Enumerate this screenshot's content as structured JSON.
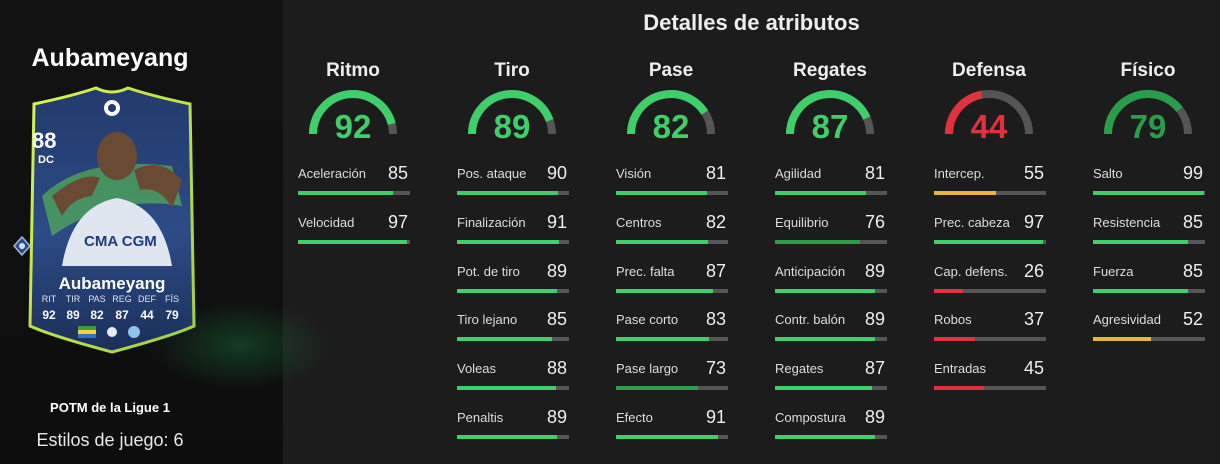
{
  "colors": {
    "green": "#3fcf6a",
    "dark_green": "#2a9c4a",
    "yellow": "#e8b63a",
    "red": "#e0323c",
    "track": "#555555"
  },
  "player": {
    "name": "Aubameyang",
    "card": {
      "rating": "88",
      "position": "DC",
      "name": "Aubameyang",
      "stats": [
        {
          "label": "RIT",
          "value": "92"
        },
        {
          "label": "TIR",
          "value": "89"
        },
        {
          "label": "PAS",
          "value": "82"
        },
        {
          "label": "REG",
          "value": "87"
        },
        {
          "label": "DEF",
          "value": "44"
        },
        {
          "label": "FÍS",
          "value": "79"
        }
      ]
    },
    "card_title": "POTM de la Ligue 1",
    "playstyles": "Estilos de juego: 6"
  },
  "header": {
    "title": "Detalles de atributos"
  },
  "categories": [
    {
      "name": "Ritmo",
      "value": 92,
      "attributes": [
        {
          "name": "Aceleración",
          "value": 85
        },
        {
          "name": "Velocidad",
          "value": 97
        }
      ]
    },
    {
      "name": "Tiro",
      "value": 89,
      "attributes": [
        {
          "name": "Pos. ataque",
          "value": 90
        },
        {
          "name": "Finalización",
          "value": 91
        },
        {
          "name": "Pot. de tiro",
          "value": 89
        },
        {
          "name": "Tiro lejano",
          "value": 85
        },
        {
          "name": "Voleas",
          "value": 88
        },
        {
          "name": "Penaltis",
          "value": 89
        }
      ]
    },
    {
      "name": "Pase",
      "value": 82,
      "attributes": [
        {
          "name": "Visión",
          "value": 81
        },
        {
          "name": "Centros",
          "value": 82
        },
        {
          "name": "Prec. falta",
          "value": 87
        },
        {
          "name": "Pase corto",
          "value": 83
        },
        {
          "name": "Pase largo",
          "value": 73
        },
        {
          "name": "Efecto",
          "value": 91
        }
      ]
    },
    {
      "name": "Regates",
      "value": 87,
      "attributes": [
        {
          "name": "Agilidad",
          "value": 81
        },
        {
          "name": "Equilibrio",
          "value": 76
        },
        {
          "name": "Anticipación",
          "value": 89
        },
        {
          "name": "Contr. balón",
          "value": 89
        },
        {
          "name": "Regates",
          "value": 87
        },
        {
          "name": "Compostura",
          "value": 89
        }
      ]
    },
    {
      "name": "Defensa",
      "value": 44,
      "attributes": [
        {
          "name": "Intercep.",
          "value": 55
        },
        {
          "name": "Prec. cabeza",
          "value": 97
        },
        {
          "name": "Cap. defens.",
          "value": 26
        },
        {
          "name": "Robos",
          "value": 37
        },
        {
          "name": "Entradas",
          "value": 45
        }
      ]
    },
    {
      "name": "Físico",
      "value": 79,
      "attributes": [
        {
          "name": "Salto",
          "value": 99
        },
        {
          "name": "Resistencia",
          "value": 85
        },
        {
          "name": "Fuerza",
          "value": 85
        },
        {
          "name": "Agresividad",
          "value": 52
        }
      ]
    }
  ]
}
